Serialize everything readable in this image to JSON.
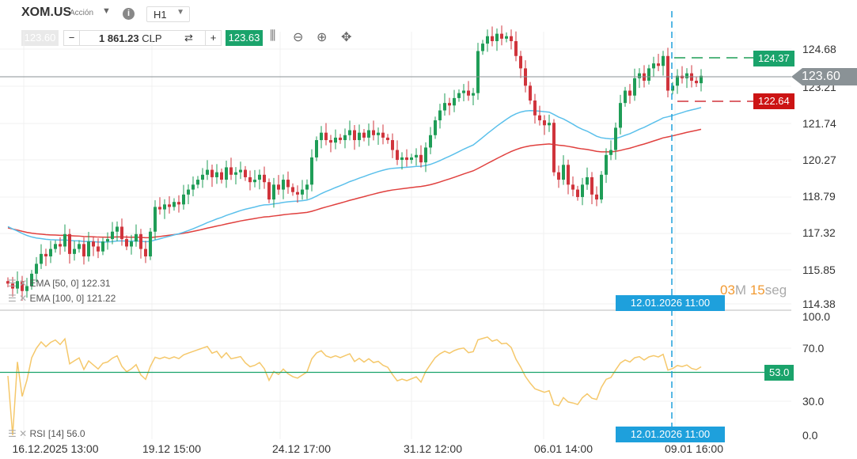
{
  "header": {
    "symbol": "XOM.US",
    "type": "Acción",
    "timeframe": "H1",
    "bid": "123.60",
    "ask": "123.63",
    "quantity": "1 861.23",
    "currency": "CLP",
    "minus": "−",
    "plus": "+",
    "swap_icon": "swap-icon",
    "tools": [
      "candles-icon",
      "zoom-out-icon",
      "zoom-in-icon",
      "move-icon"
    ]
  },
  "price_axis": {
    "labels": [
      "124.68",
      "123.21",
      "121.74",
      "120.27",
      "118.79",
      "117.32",
      "115.85",
      "114.38"
    ],
    "current": "123.60",
    "high_tag": "124.37",
    "low_tag": "122.64"
  },
  "rsi_axis": {
    "labels": [
      "100.0",
      "70.0",
      "30.0",
      "0.0"
    ],
    "level": "53.0"
  },
  "time_axis": {
    "labels": [
      "16.12.2025 13:00",
      "19.12 15:00",
      "24.12 17:00",
      "31.12 12:00",
      "06.01 14:00",
      "09.01 16:00"
    ],
    "crosshair": "12.01.2026 11:00"
  },
  "countdown": {
    "minutes": "03",
    "m_unit": "M",
    "seconds": "15",
    "s_unit": "seg"
  },
  "indicators": {
    "ema50": "EMA [50, 0] 122.31",
    "ema100": "EMA [100, 0] 121.22",
    "rsi": "RSI [14] 56.0"
  },
  "colors": {
    "up": "#1f9d57",
    "down": "#d0343c",
    "ema50": "#5bc0eb",
    "ema100": "#e0403e",
    "rsi": "#f5c86b",
    "rsi_level": "#1aa36b",
    "crosshair": "#1ea0dc",
    "current": "#8a9296"
  },
  "chart_data": {
    "type": "candlestick",
    "closes": [
      115.2,
      115.0,
      115.3,
      114.9,
      115.1,
      115.6,
      116.0,
      116.4,
      116.3,
      116.6,
      116.8,
      116.7,
      117.2,
      116.4,
      116.6,
      116.8,
      116.3,
      116.9,
      116.7,
      116.5,
      116.9,
      117.0,
      117.3,
      117.5,
      117.0,
      116.7,
      116.9,
      117.2,
      116.6,
      116.3,
      117.3,
      118.3,
      118.2,
      118.4,
      118.3,
      118.5,
      118.4,
      118.8,
      119.0,
      119.2,
      119.4,
      119.6,
      119.8,
      119.5,
      119.7,
      119.4,
      119.9,
      119.6,
      119.7,
      119.8,
      119.5,
      119.3,
      119.4,
      119.6,
      119.3,
      118.6,
      119.2,
      119.0,
      119.4,
      119.1,
      118.9,
      118.8,
      119.0,
      119.2,
      120.3,
      121.0,
      121.3,
      121.0,
      120.9,
      121.1,
      121.0,
      121.2,
      121.4,
      121.0,
      121.3,
      121.1,
      121.4,
      121.2,
      121.3,
      121.1,
      121.0,
      120.6,
      120.2,
      120.3,
      120.2,
      120.3,
      120.4,
      120.1,
      120.7,
      121.2,
      121.8,
      122.2,
      122.5,
      122.4,
      122.7,
      122.9,
      123.0,
      122.8,
      122.9,
      124.6,
      124.9,
      125.2,
      125.0,
      125.3,
      125.1,
      125.2,
      125.0,
      124.4,
      123.9,
      123.2,
      122.6,
      122.0,
      121.8,
      121.6,
      121.7,
      119.7,
      119.4,
      120.0,
      119.2,
      119.0,
      118.7,
      119.2,
      119.5,
      118.8,
      118.6,
      119.6,
      120.4,
      120.6,
      121.5,
      122.5,
      123.0,
      122.8,
      123.5,
      123.7,
      123.4,
      123.9,
      124.1,
      124.0,
      124.4,
      123.0,
      123.2,
      123.6,
      123.5,
      123.7,
      123.4,
      123.3,
      123.6
    ],
    "ylim": [
      114.38,
      124.68
    ]
  }
}
